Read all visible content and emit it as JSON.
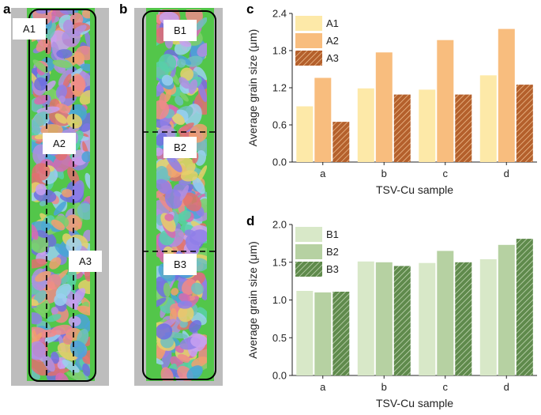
{
  "panels": {
    "a": {
      "letter": "a",
      "regions": [
        "A1",
        "A2",
        "A3"
      ]
    },
    "b": {
      "letter": "b",
      "regions": [
        "B1",
        "B2",
        "B3"
      ]
    },
    "c": {
      "letter": "c"
    },
    "d": {
      "letter": "d"
    }
  },
  "colors": {
    "c_series": [
      "#fde9a8",
      "#f8bd7e",
      "#b4602c"
    ],
    "d_series": [
      "#d8e8c8",
      "#b6d1a2",
      "#5f8a4c"
    ],
    "hatch_c": "#f6c89a",
    "hatch_d": "#cfe3c1",
    "micro_bg": "#bdbdbd",
    "micro_green": "#53c64a"
  },
  "chart_data": [
    {
      "id": "c",
      "type": "bar",
      "categories": [
        "a",
        "b",
        "c",
        "d"
      ],
      "series": [
        {
          "name": "A1",
          "values": [
            0.9,
            1.19,
            1.17,
            1.4
          ]
        },
        {
          "name": "A2",
          "values": [
            1.36,
            1.77,
            1.97,
            2.15
          ]
        },
        {
          "name": "A3",
          "values": [
            0.65,
            1.09,
            1.09,
            1.25
          ]
        }
      ],
      "xlabel": "TSV-Cu sample",
      "ylabel": "Average grain size (μm)",
      "ylim": [
        0,
        2.4
      ],
      "yticks": [
        "0.0",
        "0.6",
        "1.2",
        "1.8",
        "2.4"
      ],
      "legend": "top-left"
    },
    {
      "id": "d",
      "type": "bar",
      "categories": [
        "a",
        "b",
        "c",
        "d"
      ],
      "series": [
        {
          "name": "B1",
          "values": [
            1.12,
            1.51,
            1.49,
            1.54
          ]
        },
        {
          "name": "B2",
          "values": [
            1.1,
            1.5,
            1.65,
            1.73
          ]
        },
        {
          "name": "B3",
          "values": [
            1.11,
            1.45,
            1.5,
            1.81
          ]
        }
      ],
      "xlabel": "TSV-Cu sample",
      "ylabel": "Average grain size (μm)",
      "ylim": [
        0,
        2.0
      ],
      "yticks": [
        "0.0",
        "0.5",
        "1.0",
        "1.5",
        "2.0"
      ],
      "legend": "top-left"
    }
  ]
}
